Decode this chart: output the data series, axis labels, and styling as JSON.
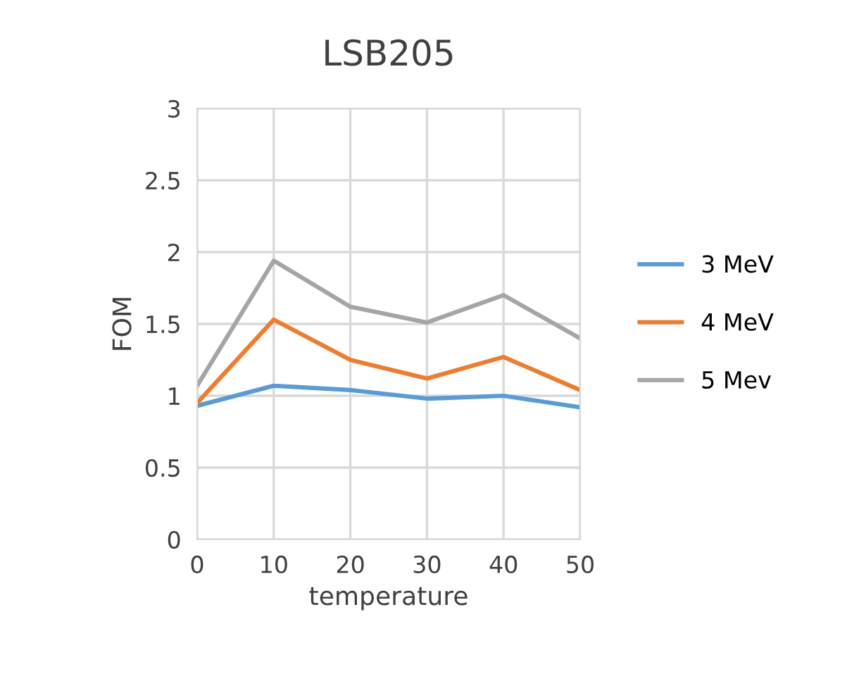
{
  "chart_data": {
    "type": "line",
    "title": "LSB205",
    "xlabel": "temperature",
    "ylabel": "FOM",
    "x": [
      0,
      10,
      20,
      30,
      40,
      50
    ],
    "series": [
      {
        "name": "3 MeV",
        "color": "#5b9bd5",
        "values": [
          0.93,
          1.07,
          1.04,
          0.98,
          1.0,
          0.92
        ]
      },
      {
        "name": "4 MeV",
        "color": "#ed7d31",
        "values": [
          0.95,
          1.53,
          1.25,
          1.12,
          1.27,
          1.04
        ]
      },
      {
        "name": "5 Mev",
        "color": "#a5a5a5",
        "values": [
          1.07,
          1.94,
          1.62,
          1.51,
          1.7,
          1.4
        ]
      }
    ],
    "xlim": [
      0,
      50
    ],
    "xticks": [
      0,
      10,
      20,
      30,
      40,
      50
    ],
    "ylim": [
      0,
      3
    ],
    "yticks": [
      0,
      0.5,
      1,
      1.5,
      2,
      2.5,
      3
    ],
    "grid": true,
    "legend": "right",
    "marker": "none",
    "line_style": "solid"
  }
}
